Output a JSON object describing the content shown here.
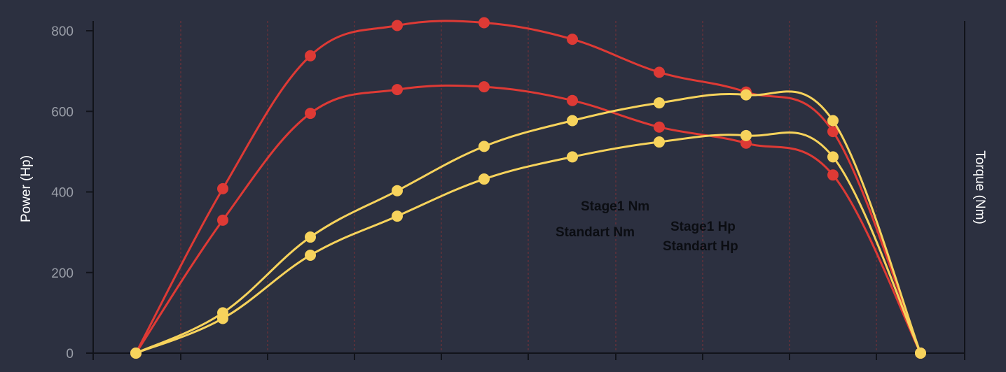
{
  "chart_data": {
    "type": "line",
    "ylabel_left": "Power (Hp)",
    "ylabel_right": "Torque (Nm)",
    "y_ticks": [
      "0",
      "200",
      "400",
      "600",
      "800"
    ],
    "ylim": [
      0,
      820
    ],
    "x": [
      1,
      2,
      3,
      4,
      5,
      6,
      7,
      8,
      9,
      10
    ],
    "grid": "vertical dotted red lines",
    "colors": {
      "background": "#2c3040",
      "red": "#de3a35",
      "yellow": "#f7d35c",
      "axis": "#11131a"
    },
    "series": [
      {
        "name": "Stage1 Nm",
        "color": "#de3a35",
        "values": [
          0,
          408,
          738,
          813,
          820,
          779,
          697,
          648,
          550,
          0
        ]
      },
      {
        "name": "Standart Nm",
        "color": "#de3a35",
        "values": [
          0,
          330,
          595,
          654,
          661,
          627,
          561,
          521,
          442,
          0
        ]
      },
      {
        "name": "Stage1 Hp",
        "color": "#f7d35c",
        "values": [
          0,
          100,
          288,
          403,
          513,
          577,
          621,
          641,
          577,
          0
        ]
      },
      {
        "name": "Standart Hp",
        "color": "#f7d35c",
        "values": [
          0,
          86,
          243,
          340,
          432,
          487,
          524,
          540,
          487,
          0
        ]
      }
    ]
  }
}
